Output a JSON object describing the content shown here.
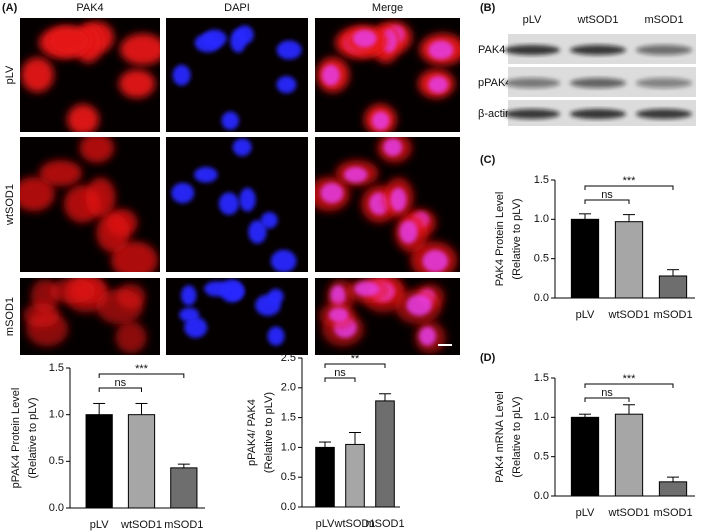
{
  "figure": {
    "panel_labels": [
      "(A)",
      "(B)",
      "(C)",
      "(D)"
    ],
    "microscopy": {
      "columns": [
        "PAK4",
        "DAPI",
        "Merge"
      ],
      "rows": [
        "pLV",
        "wtSOD1",
        "mSOD1"
      ]
    },
    "blot": {
      "lanes": [
        "pLV",
        "wtSOD1",
        "mSOD1"
      ],
      "bands": [
        "PAK4",
        "pPAK4",
        "β-actin"
      ]
    }
  },
  "chart_data": [
    {
      "type": "bar",
      "ylabel": "PAK4 Protein Level",
      "ylabel_note": "(Relative to pLV)",
      "categories": [
        "pLV",
        "wtSOD1",
        "mSOD1"
      ],
      "values": [
        1.0,
        0.97,
        0.28
      ],
      "errors": [
        0.07,
        0.09,
        0.08
      ],
      "colors": [
        "#000000",
        "#a6a6a6",
        "#6e6e6e"
      ],
      "ylim": [
        0,
        1.5
      ],
      "yticks": [
        {
          "value": 0,
          "label": "0.0"
        },
        {
          "value": 0.5,
          "label": "0.5"
        },
        {
          "value": 1,
          "label": "1.0"
        },
        {
          "value": 1.5,
          "label": "1.5"
        }
      ],
      "annotations": [
        "ns",
        "***"
      ]
    },
    {
      "type": "bar",
      "ylabel": "PAK4  mRNA Level",
      "ylabel_note": "(Relative to pLV)",
      "categories": [
        "pLV",
        "wtSOD1",
        "mSOD1"
      ],
      "values": [
        1.0,
        1.04,
        0.18
      ],
      "errors": [
        0.04,
        0.12,
        0.06
      ],
      "colors": [
        "#000000",
        "#a6a6a6",
        "#6e6e6e"
      ],
      "ylim": [
        0,
        1.5
      ],
      "yticks": [
        {
          "value": 0,
          "label": "0.0"
        },
        {
          "value": 0.5,
          "label": "0.5"
        },
        {
          "value": 1,
          "label": "1.0"
        },
        {
          "value": 1.5,
          "label": "1.5"
        }
      ],
      "annotations": [
        "ns",
        "***"
      ]
    },
    {
      "type": "bar",
      "ylabel": "pPAK4 Protein Level",
      "ylabel_note": "(Relative to pLV)",
      "categories": [
        "pLV",
        "wtSOD1",
        "mSOD1"
      ],
      "values": [
        1.0,
        1.0,
        0.43
      ],
      "errors": [
        0.12,
        0.12,
        0.04
      ],
      "colors": [
        "#000000",
        "#a6a6a6",
        "#6e6e6e"
      ],
      "ylim": [
        0,
        1.5
      ],
      "yticks": [
        {
          "value": 0,
          "label": "0.0"
        },
        {
          "value": 0.5,
          "label": "0.5"
        },
        {
          "value": 1,
          "label": "1.0"
        },
        {
          "value": 1.5,
          "label": "1.5"
        }
      ],
      "annotations": [
        "ns",
        "***"
      ]
    },
    {
      "type": "bar",
      "ylabel": "pPAK4/ PAK4",
      "ylabel_note": "(Relative to pLV)",
      "categories": [
        "pLV",
        "wtSOD1",
        "mSOD1"
      ],
      "values": [
        1.0,
        1.05,
        1.78
      ],
      "errors": [
        0.09,
        0.2,
        0.12
      ],
      "colors": [
        "#000000",
        "#a6a6a6",
        "#6e6e6e"
      ],
      "ylim": [
        0,
        2.5
      ],
      "yticks": [
        {
          "value": 0,
          "label": "0.0"
        },
        {
          "value": 0.5,
          "label": "0.5"
        },
        {
          "value": 1,
          "label": "1.0"
        },
        {
          "value": 1.5,
          "label": "1.5"
        },
        {
          "value": 2,
          "label": "2.0"
        },
        {
          "value": 2.5,
          "label": "2.5"
        }
      ],
      "annotations": [
        "ns",
        "**"
      ]
    }
  ]
}
